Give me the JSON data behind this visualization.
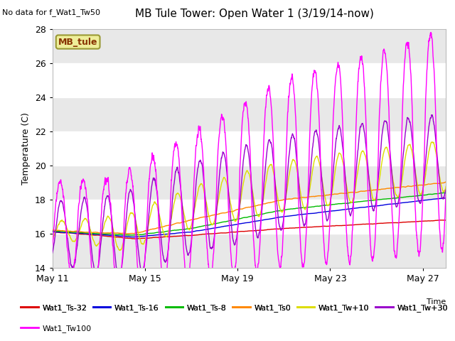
{
  "title": "MB Tule Tower: Open Water 1 (3/19/14-now)",
  "subtitle": "No data for f_Wat1_Tw50",
  "xlabel": "Time",
  "ylabel": "Temperature (C)",
  "ylim": [
    14,
    28
  ],
  "xlim": [
    0,
    17
  ],
  "yticks": [
    14,
    16,
    18,
    20,
    22,
    24,
    26,
    28
  ],
  "xtick_labels": [
    "May 11",
    "May 15",
    "May 19",
    "May 23",
    "May 27"
  ],
  "xtick_positions": [
    0,
    4,
    8,
    12,
    16
  ],
  "plot_bg_color": "#ffffff",
  "band_color": "#e8e8e8",
  "series_colors": {
    "Wat1_Ts-32": "#dd0000",
    "Wat1_Ts-16": "#0000dd",
    "Wat1_Ts-8": "#00bb00",
    "Wat1_Ts0": "#ff8800",
    "Wat1_Tw+10": "#dddd00",
    "Wat1_Tw+30": "#9900cc",
    "Wat1_Tw100": "#ff00ff"
  },
  "legend_box_facecolor": "#eeee99",
  "legend_box_edgecolor": "#999933",
  "legend_box_text": "MB_tule",
  "legend_box_text_color": "#883300"
}
